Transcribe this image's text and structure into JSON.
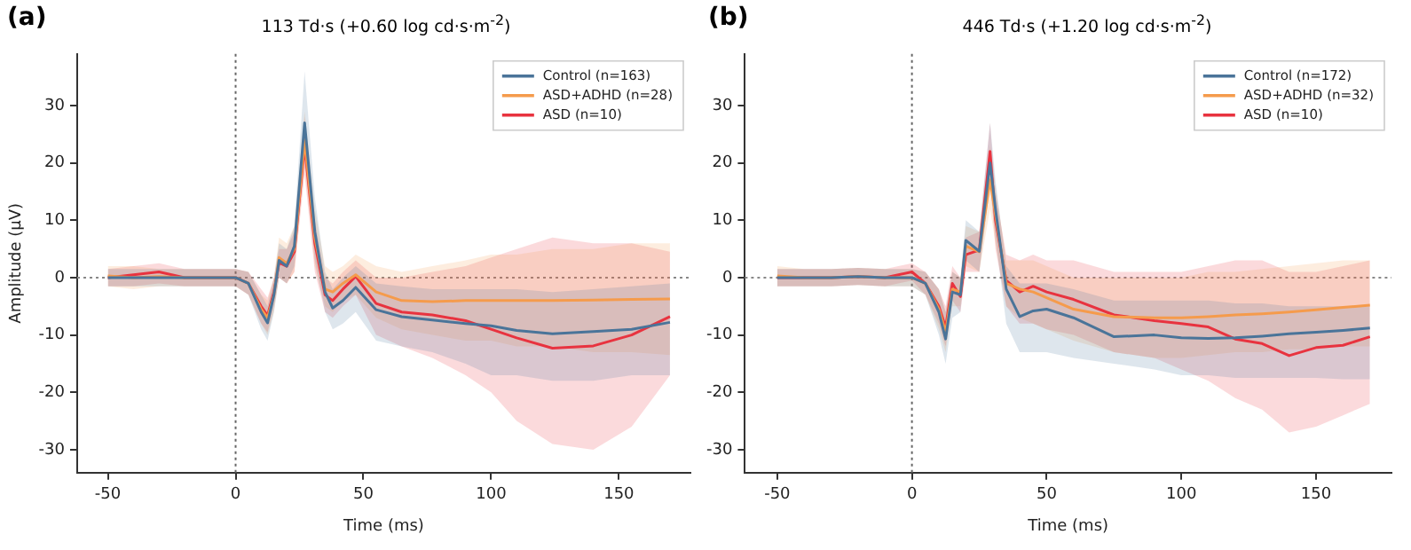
{
  "chart_data": [
    {
      "type": "line",
      "title": "113 Td·s (+0.60 log cd·s·m$^{-2}$)",
      "annotations": [
        "(a)"
      ],
      "xlabel": "Time (ms)",
      "ylabel": "Amplitude (μV)",
      "x": [
        -50,
        -40,
        -30,
        -20,
        -10,
        0,
        5,
        10,
        12.5,
        15,
        17,
        20,
        23,
        27,
        31,
        35,
        38,
        42,
        47,
        55,
        65,
        77,
        90,
        100,
        110,
        124,
        140,
        155,
        170
      ],
      "series": [
        {
          "name": "Control (n=163)",
          "color": "#4a7499",
          "values": [
            0,
            0,
            0,
            0,
            0,
            0,
            -1,
            -6,
            -7.9,
            -3,
            3,
            2,
            5.5,
            27,
            8,
            -2.5,
            -5.3,
            -4,
            -1.7,
            -5.6,
            -6.8,
            -7.4,
            -8,
            -8.4,
            -9.2,
            -9.8,
            -9.4,
            -9,
            -7.8
          ],
          "lower": [
            -1.5,
            -1.5,
            -1.5,
            -1.5,
            -1.5,
            -1.5,
            -3,
            -9,
            -11,
            -6,
            0,
            -1,
            2,
            21,
            3,
            -6,
            -9,
            -8,
            -6,
            -11,
            -12,
            -13,
            -15,
            -17,
            -17,
            -18,
            -18,
            -17,
            -17
          ],
          "upper": [
            1.5,
            1.5,
            1.5,
            1.5,
            1.5,
            1.5,
            1,
            -3,
            -5,
            0,
            6,
            5,
            9,
            36,
            14,
            1,
            -2,
            0,
            2,
            -1,
            -1.5,
            -2,
            -2,
            -2,
            -2,
            -2.5,
            -2,
            -1.5,
            -1
          ]
        },
        {
          "name": "ASD+ADHD (n=28)",
          "color": "#f59b4c",
          "values": [
            0.3,
            0,
            0.2,
            0,
            0,
            0,
            -1,
            -5.5,
            -7,
            -3,
            3.5,
            2.5,
            5,
            24,
            7,
            -2,
            -2.5,
            -1,
            0.5,
            -2.5,
            -4,
            -4.2,
            -4,
            -4,
            -4,
            -4,
            -3.9,
            -3.8,
            -3.7
          ],
          "lower": [
            -1.5,
            -2,
            -1.5,
            -1.5,
            -1.5,
            -1.5,
            -3,
            -8,
            -10,
            -6,
            0,
            -1,
            1,
            19,
            2,
            -5,
            -6,
            -4,
            -3,
            -7,
            -9,
            -10,
            -11,
            -11,
            -12,
            -12,
            -13,
            -13,
            -13.5
          ],
          "upper": [
            2,
            2,
            1.5,
            1.5,
            1.5,
            1.5,
            1,
            -3,
            -4,
            0,
            7,
            6,
            9,
            29,
            12,
            2,
            1,
            2,
            4,
            2,
            1,
            2,
            3,
            4,
            4,
            5,
            5,
            6,
            6
          ]
        },
        {
          "name": "ASD (n=10)",
          "color": "#e8333f",
          "values": [
            0,
            0.5,
            1,
            0,
            0,
            0,
            -1,
            -5,
            -6.6,
            -2.5,
            2.6,
            2,
            4.5,
            23,
            6,
            -3,
            -4,
            -2,
            0.2,
            -4.5,
            -6,
            -6.5,
            -7.5,
            -9,
            -10.5,
            -12.3,
            -11.9,
            -10,
            -6.8
          ],
          "lower": [
            -1.5,
            -1.5,
            -1,
            -1.5,
            -1.5,
            -1.5,
            -3,
            -8,
            -9.5,
            -5,
            0,
            -1,
            1,
            18,
            1,
            -6,
            -7,
            -5,
            -3,
            -10,
            -12,
            -14,
            -17,
            -20,
            -25,
            -29,
            -30,
            -26,
            -17
          ],
          "upper": [
            1.5,
            2,
            2.5,
            1.5,
            1.5,
            1.5,
            1,
            -2,
            -3.5,
            0,
            5,
            5,
            8,
            28,
            10,
            0,
            -1,
            1,
            3,
            0,
            0,
            1,
            2,
            3.5,
            5,
            7,
            6,
            6,
            4.5
          ]
        }
      ],
      "xlim": [
        -62,
        178
      ],
      "xticks": [
        -50,
        0,
        50,
        100,
        150
      ],
      "ylim": [
        -34,
        39
      ],
      "yticks": [
        -30,
        -20,
        -10,
        0,
        10,
        20,
        30
      ],
      "ref_lines": [
        {
          "axis": "x",
          "value": 0,
          "color": "#666666",
          "line_style": "dotted"
        },
        {
          "axis": "y",
          "value": 0,
          "color": "#888888",
          "line_style": "dotted"
        }
      ],
      "legend": "top right",
      "grid": false,
      "marker": "none",
      "line_style": "solid"
    },
    {
      "type": "line",
      "title": "446 Td·s (+1.20 log cd·s·m$^{-2}$)",
      "annotations": [
        "(b)"
      ],
      "xlabel": "Time (ms)",
      "x": [
        -50,
        -40,
        -30,
        -20,
        -10,
        0,
        5,
        10,
        12.5,
        15,
        18,
        20,
        25,
        29,
        31,
        35,
        40,
        45,
        50,
        60,
        75,
        90,
        100,
        110,
        120,
        130,
        140,
        150,
        160,
        170
      ],
      "series": [
        {
          "name": "Control (n=172)",
          "color": "#4a7499",
          "values": [
            0,
            0,
            0,
            0.2,
            0,
            0,
            -1,
            -6,
            -10.7,
            -2.5,
            -3,
            6.5,
            4.6,
            20,
            12,
            -2,
            -6.8,
            -5.8,
            -5.5,
            -7,
            -10.3,
            -10,
            -10.5,
            -10.6,
            -10.5,
            -10.2,
            -9.8,
            -9.5,
            -9.2,
            -8.8
          ],
          "lower": [
            -1.5,
            -1.5,
            -1.5,
            -1.3,
            -1.5,
            -1.5,
            -3,
            -10,
            -15,
            -7,
            -6,
            3,
            1,
            16,
            7,
            -8,
            -13,
            -13,
            -13,
            -14,
            -15,
            -16,
            -17,
            -17,
            -17.5,
            -17.5,
            -17.5,
            -17.5,
            -17.7,
            -17.7
          ],
          "upper": [
            1.5,
            1.5,
            1.5,
            1.7,
            1.5,
            1.5,
            1,
            -2,
            -6,
            1,
            0,
            10,
            8,
            27,
            17,
            2,
            -1,
            -1,
            -1,
            -2,
            -4,
            -4,
            -4,
            -4,
            -4.5,
            -4.5,
            -5,
            -5,
            -5,
            -5
          ]
        },
        {
          "name": "ASD+ADHD (n=32)",
          "color": "#f59b4c",
          "values": [
            0.3,
            0,
            0,
            0.2,
            0,
            0,
            -1,
            -5.5,
            -9.5,
            -2,
            -2.5,
            5.5,
            4.5,
            17,
            11,
            -1,
            -2,
            -2.5,
            -3.5,
            -5.5,
            -6.8,
            -7,
            -7,
            -6.8,
            -6.5,
            -6.3,
            -6,
            -5.6,
            -5.2,
            -4.8
          ],
          "lower": [
            -1.5,
            -1.5,
            -1.5,
            -1.3,
            -1.5,
            -1.5,
            -3,
            -9,
            -13,
            -5,
            -5,
            2,
            1,
            12,
            6,
            -5,
            -7,
            -8,
            -9,
            -11,
            -13,
            -14,
            -14,
            -13.5,
            -13,
            -13,
            -12.5,
            -12.5,
            -12,
            -12
          ],
          "upper": [
            2,
            1.5,
            1.5,
            1.7,
            1.5,
            1.5,
            1,
            -2,
            -6,
            1,
            0,
            9,
            8,
            23,
            16,
            3,
            3,
            3,
            2,
            0,
            0,
            0,
            0,
            1,
            1,
            1.5,
            2,
            2.5,
            3,
            3
          ]
        },
        {
          "name": "ASD (n=10)",
          "color": "#e8333f",
          "values": [
            0,
            0,
            0,
            0.2,
            0,
            1,
            -1,
            -5,
            -8.7,
            -1,
            -3.3,
            4,
            4.8,
            22,
            10,
            -0.5,
            -2.5,
            -1.5,
            -2.5,
            -3.8,
            -6.5,
            -7.5,
            -8,
            -8.6,
            -10.7,
            -11.5,
            -13.6,
            -12.2,
            -11.8,
            -10.3
          ],
          "lower": [
            -1.5,
            -1.5,
            -1.5,
            -1.3,
            -1.5,
            -0.5,
            -3,
            -8,
            -12,
            -4,
            -6,
            1,
            1,
            17,
            5,
            -5,
            -8,
            -8,
            -9,
            -10,
            -13,
            -14,
            -16,
            -18,
            -21,
            -23,
            -27,
            -26,
            -24,
            -22
          ],
          "upper": [
            1.5,
            1.5,
            1.5,
            1.7,
            1.5,
            2.5,
            1,
            -2,
            -5,
            2,
            0,
            7,
            8,
            27,
            15,
            4,
            3,
            4,
            3,
            3,
            1,
            1,
            1,
            2,
            3,
            3,
            1,
            1,
            2,
            3
          ]
        }
      ],
      "xlim": [
        -62,
        178
      ],
      "xticks": [
        -50,
        0,
        50,
        100,
        150
      ],
      "ylim": [
        -34,
        39
      ],
      "yticks": [
        -30,
        -20,
        -10,
        0,
        10,
        20,
        30
      ],
      "ref_lines": [
        {
          "axis": "x",
          "value": 0,
          "color": "#666666",
          "line_style": "dotted"
        },
        {
          "axis": "y",
          "value": 0,
          "color": "#888888",
          "line_style": "dotted"
        }
      ],
      "legend": "top right",
      "grid": false,
      "marker": "none",
      "line_style": "solid"
    }
  ]
}
